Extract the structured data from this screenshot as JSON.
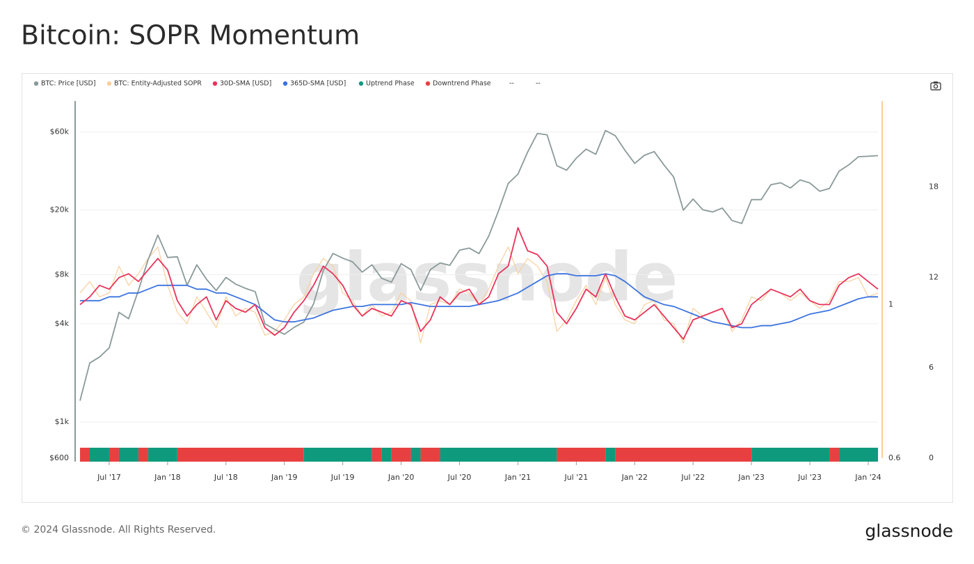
{
  "chart_data": {
    "type": "line",
    "title": "Bitcoin: SOPR Momentum",
    "watermark": "glassnode",
    "copyright": "© 2024 Glassnode. All Rights Reserved.",
    "brand": "glassnode",
    "x": [
      "2017-04",
      "2017-05",
      "2017-06",
      "2017-07",
      "2017-08",
      "2017-09",
      "2017-10",
      "2017-11",
      "2017-12",
      "2018-01",
      "2018-02",
      "2018-03",
      "2018-04",
      "2018-05",
      "2018-06",
      "2018-07",
      "2018-08",
      "2018-09",
      "2018-10",
      "2018-11",
      "2018-12",
      "2019-01",
      "2019-02",
      "2019-03",
      "2019-04",
      "2019-05",
      "2019-06",
      "2019-07",
      "2019-08",
      "2019-09",
      "2019-10",
      "2019-11",
      "2019-12",
      "2020-01",
      "2020-02",
      "2020-03",
      "2020-04",
      "2020-05",
      "2020-06",
      "2020-07",
      "2020-08",
      "2020-09",
      "2020-10",
      "2020-11",
      "2020-12",
      "2021-01",
      "2021-02",
      "2021-03",
      "2021-04",
      "2021-05",
      "2021-06",
      "2021-07",
      "2021-08",
      "2021-09",
      "2021-10",
      "2021-11",
      "2021-12",
      "2022-01",
      "2022-02",
      "2022-03",
      "2022-04",
      "2022-05",
      "2022-06",
      "2022-07",
      "2022-08",
      "2022-09",
      "2022-10",
      "2022-11",
      "2022-12",
      "2023-01",
      "2023-02",
      "2023-03",
      "2023-04",
      "2023-05",
      "2023-06",
      "2023-07",
      "2023-08",
      "2023-09",
      "2023-10",
      "2023-11",
      "2023-12",
      "2024-01",
      "2024-02"
    ],
    "xlim": [
      "2017-04",
      "2024-02"
    ],
    "xticks": [
      {
        "value": "2017-07",
        "label": "Jul '17"
      },
      {
        "value": "2018-01",
        "label": "Jan '18"
      },
      {
        "value": "2018-07",
        "label": "Jul '18"
      },
      {
        "value": "2019-01",
        "label": "Jan '19"
      },
      {
        "value": "2019-07",
        "label": "Jul '19"
      },
      {
        "value": "2020-01",
        "label": "Jan '20"
      },
      {
        "value": "2020-07",
        "label": "Jul '20"
      },
      {
        "value": "2021-01",
        "label": "Jan '21"
      },
      {
        "value": "2021-07",
        "label": "Jul '21"
      },
      {
        "value": "2022-01",
        "label": "Jan '22"
      },
      {
        "value": "2022-07",
        "label": "Jul '22"
      },
      {
        "value": "2023-01",
        "label": "Jan '23"
      },
      {
        "value": "2023-07",
        "label": "Jul '23"
      },
      {
        "value": "2024-01",
        "label": "Jan '24"
      }
    ],
    "ylim": [
      600,
      93000
    ],
    "yscale": "log",
    "yticks": [
      {
        "value": 600,
        "label": "$600"
      },
      {
        "value": 1000,
        "label": "$1k"
      },
      {
        "value": 4000,
        "label": "$4k"
      },
      {
        "value": 8000,
        "label": "$8k"
      },
      {
        "value": 20000,
        "label": "$20k"
      },
      {
        "value": 60000,
        "label": "$60k"
      }
    ],
    "y2lim": [
      0.6,
      1.53
    ],
    "y2ticks": [
      0.6,
      1
    ],
    "y3lim": [
      0,
      23.7
    ],
    "y3ticks": [
      0,
      6,
      12,
      18
    ],
    "grid": true,
    "series": [
      {
        "name": "BTC: Price [USD]",
        "color": "#8a9999",
        "values": [
          1350,
          2300,
          2500,
          2850,
          4700,
          4300,
          6400,
          9900,
          14000,
          10200,
          10300,
          6900,
          9200,
          7500,
          6400,
          7700,
          7000,
          6600,
          6300,
          4000,
          3700,
          3450,
          3800,
          4100,
          5300,
          8500,
          10800,
          10100,
          9600,
          8300,
          9200,
          7600,
          7200,
          9350,
          8600,
          6400,
          8600,
          9450,
          9140,
          11300,
          11650,
          10780,
          13800,
          19700,
          29000,
          33100,
          45200,
          58800,
          57700,
          37300,
          35000,
          41500,
          47100,
          43800,
          61300,
          57000,
          46300,
          38500,
          43200,
          45500,
          37700,
          31800,
          19900,
          23300,
          20000,
          19400,
          20500,
          17200,
          16500,
          23100,
          23100,
          28500,
          29300,
          27200,
          30500,
          29200,
          26000,
          27000,
          34500,
          37700,
          42300,
          42600,
          43000
        ]
      },
      {
        "name": "BTC: Entity-Adjusted SOPR",
        "color": "#f9cf9c",
        "axis": "y2",
        "values": [
          1.03,
          1.06,
          1.02,
          1.03,
          1.1,
          1.05,
          1.08,
          1.12,
          1.15,
          1.05,
          0.98,
          0.95,
          1.02,
          0.98,
          0.94,
          1.02,
          0.97,
          0.99,
          0.98,
          0.92,
          0.93,
          0.96,
          1.0,
          1.02,
          1.08,
          1.12,
          1.1,
          1.03,
          1.01,
          0.97,
          1.0,
          0.97,
          0.98,
          1.03,
          1.01,
          0.9,
          1.0,
          1.01,
          1.0,
          1.04,
          1.03,
          1.0,
          1.04,
          1.1,
          1.15,
          1.08,
          1.12,
          1.1,
          1.06,
          0.93,
          0.96,
          1.01,
          1.05,
          1.0,
          1.07,
          1.0,
          0.96,
          0.95,
          1.0,
          1.01,
          0.96,
          0.95,
          0.9,
          0.99,
          0.97,
          0.98,
          0.99,
          0.93,
          0.96,
          1.02,
          1.01,
          1.04,
          1.03,
          1.01,
          1.03,
          1.01,
          0.99,
          1.01,
          1.06,
          1.06,
          1.07,
          1.02,
          1.03
        ]
      },
      {
        "name": "30D-SMA [USD]",
        "color": "#e8335a",
        "axis": "y2",
        "values": [
          1.0,
          1.02,
          1.05,
          1.04,
          1.07,
          1.08,
          1.06,
          1.09,
          1.12,
          1.09,
          1.01,
          0.97,
          1.0,
          1.02,
          0.96,
          1.01,
          0.99,
          0.98,
          1.0,
          0.94,
          0.92,
          0.94,
          0.98,
          1.01,
          1.05,
          1.1,
          1.08,
          1.05,
          1.0,
          0.97,
          0.99,
          0.98,
          0.97,
          1.01,
          1.0,
          0.93,
          0.96,
          1.02,
          1.0,
          1.03,
          1.04,
          1.0,
          1.02,
          1.08,
          1.1,
          1.2,
          1.14,
          1.13,
          1.1,
          0.98,
          0.95,
          0.99,
          1.04,
          1.02,
          1.08,
          1.02,
          0.97,
          0.96,
          0.98,
          1.0,
          0.97,
          0.94,
          0.91,
          0.96,
          0.97,
          0.98,
          0.99,
          0.94,
          0.95,
          1.0,
          1.02,
          1.04,
          1.03,
          1.02,
          1.04,
          1.01,
          1.0,
          1.0,
          1.05,
          1.07,
          1.08,
          1.06,
          1.04
        ]
      },
      {
        "name": "365D-SMA [USD]",
        "color": "#3b73e0",
        "axis": "y2",
        "values": [
          1.01,
          1.01,
          1.01,
          1.02,
          1.02,
          1.03,
          1.03,
          1.04,
          1.05,
          1.05,
          1.05,
          1.05,
          1.04,
          1.04,
          1.03,
          1.03,
          1.02,
          1.01,
          1.0,
          0.98,
          0.96,
          0.955,
          0.955,
          0.96,
          0.965,
          0.975,
          0.985,
          0.99,
          0.995,
          0.995,
          1.0,
          1.0,
          1.0,
          1.0,
          1.005,
          1.0,
          0.995,
          0.995,
          0.995,
          0.995,
          0.995,
          1.0,
          1.005,
          1.01,
          1.02,
          1.03,
          1.045,
          1.06,
          1.075,
          1.08,
          1.08,
          1.075,
          1.075,
          1.075,
          1.08,
          1.075,
          1.06,
          1.04,
          1.02,
          1.01,
          1.0,
          0.995,
          0.985,
          0.975,
          0.965,
          0.955,
          0.95,
          0.945,
          0.94,
          0.94,
          0.945,
          0.945,
          0.95,
          0.955,
          0.965,
          0.975,
          0.98,
          0.985,
          0.995,
          1.005,
          1.015,
          1.02,
          1.02
        ]
      },
      {
        "name": "Uptrend Phase",
        "color": "#0f9a7e",
        "periods": [
          [
            "2017-05",
            "2017-07"
          ],
          [
            "2017-08",
            "2017-10"
          ],
          [
            "2017-11",
            "2018-02"
          ],
          [
            "2019-03",
            "2019-10"
          ],
          [
            "2019-11",
            "2019-12"
          ],
          [
            "2020-02",
            "2020-03"
          ],
          [
            "2020-05",
            "2021-05"
          ],
          [
            "2021-10",
            "2021-11"
          ],
          [
            "2023-01",
            "2023-09"
          ],
          [
            "2023-10",
            "2024-02"
          ]
        ]
      },
      {
        "name": "Downtrend Phase",
        "color": "#e84040",
        "periods": [
          [
            "2017-04",
            "2017-05"
          ],
          [
            "2017-07",
            "2017-08"
          ],
          [
            "2017-10",
            "2017-11"
          ],
          [
            "2018-02",
            "2019-03"
          ],
          [
            "2019-10",
            "2019-11"
          ],
          [
            "2019-12",
            "2020-02"
          ],
          [
            "2020-03",
            "2020-05"
          ],
          [
            "2021-05",
            "2021-10"
          ],
          [
            "2021-11",
            "2023-01"
          ],
          [
            "2023-09",
            "2023-10"
          ]
        ]
      },
      {
        "name": "--"
      },
      {
        "name": "--"
      }
    ]
  }
}
